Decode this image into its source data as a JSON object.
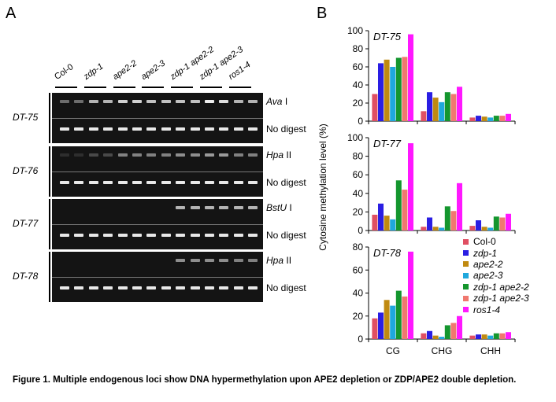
{
  "panel_a": {
    "letter": "A",
    "lanes": [
      "Col-0",
      "zdp-1",
      "ape2-2",
      "ape2-3",
      "zdp-1 ape2-2",
      "zdp-1 ape2-3",
      "ros1-4"
    ],
    "loci": [
      {
        "name": "DT-75",
        "enzyme": "Ava",
        "enzyme_suffix": "I",
        "nodigest": "No digest"
      },
      {
        "name": "DT-76",
        "enzyme": "Hpa",
        "enzyme_suffix": "II",
        "nodigest": "No digest"
      },
      {
        "name": "DT-77",
        "enzyme": "BstU",
        "enzyme_suffix": "I",
        "nodigest": "No digest"
      },
      {
        "name": "DT-78",
        "enzyme": "Hpa",
        "enzyme_suffix": "II",
        "nodigest": "No digest"
      }
    ],
    "band_intensity": [
      [
        0.45,
        0.45,
        0.75,
        0.75,
        0.85,
        0.85,
        0.8,
        0.8,
        0.8,
        0.8,
        0.95,
        0.9,
        0.75,
        0.75
      ],
      [
        0.05,
        0.05,
        0.25,
        0.25,
        0.55,
        0.55,
        0.55,
        0.55,
        0.6,
        0.6,
        0.65,
        0.65,
        0.55,
        0.55
      ],
      [
        0.0,
        0.0,
        0.0,
        0.0,
        0.0,
        0.0,
        0.0,
        0.0,
        0.75,
        0.75,
        0.75,
        0.75,
        0.75,
        0.75
      ],
      [
        0.0,
        0.0,
        0.0,
        0.0,
        0.0,
        0.0,
        0.0,
        0.0,
        0.6,
        0.6,
        0.6,
        0.6,
        0.55,
        0.55
      ]
    ]
  },
  "panel_b": {
    "letter": "B",
    "ylabel": "Cytosine methylation level (%)",
    "legend": [
      "Col-0",
      "zdp-1",
      "ape2-2",
      "ape2-3",
      "zdp-1 ape2-2",
      "zdp-1 ape2-3",
      "ros1-4"
    ],
    "legend_italic": [
      false,
      true,
      true,
      true,
      true,
      true,
      true
    ],
    "colors": [
      "#e04f62",
      "#2a1ee3",
      "#c08a10",
      "#1fa8dd",
      "#14962e",
      "#f0786f",
      "#ff18ff"
    ]
  },
  "chart_data": [
    {
      "type": "bar",
      "title": "DT-75",
      "categories": [
        "CG",
        "CHG",
        "CHH"
      ],
      "ylim": [
        0,
        100
      ],
      "yticks": [
        0,
        20,
        40,
        60,
        80,
        100
      ],
      "series": [
        {
          "name": "Col-0",
          "values": [
            30,
            11,
            4
          ]
        },
        {
          "name": "zdp-1",
          "values": [
            64,
            32,
            6
          ]
        },
        {
          "name": "ape2-2",
          "values": [
            68,
            26,
            5
          ]
        },
        {
          "name": "ape2-3",
          "values": [
            60,
            21,
            4
          ]
        },
        {
          "name": "zdp-1 ape2-2",
          "values": [
            70,
            32,
            6
          ]
        },
        {
          "name": "zdp-1 ape2-3",
          "values": [
            71,
            30,
            6
          ]
        },
        {
          "name": "ros1-4",
          "values": [
            96,
            38,
            8
          ]
        }
      ]
    },
    {
      "type": "bar",
      "title": "DT-77",
      "categories": [
        "CG",
        "CHG",
        "CHH"
      ],
      "ylim": [
        0,
        100
      ],
      "yticks": [
        0,
        20,
        40,
        60,
        80,
        100
      ],
      "series": [
        {
          "name": "Col-0",
          "values": [
            17,
            4,
            5
          ]
        },
        {
          "name": "zdp-1",
          "values": [
            29,
            14,
            11
          ]
        },
        {
          "name": "ape2-2",
          "values": [
            16,
            4,
            4
          ]
        },
        {
          "name": "ape2-3",
          "values": [
            12,
            3,
            3
          ]
        },
        {
          "name": "zdp-1 ape2-2",
          "values": [
            54,
            26,
            15
          ]
        },
        {
          "name": "zdp-1 ape2-3",
          "values": [
            44,
            21,
            14
          ]
        },
        {
          "name": "ros1-4",
          "values": [
            94,
            51,
            18
          ]
        }
      ]
    },
    {
      "type": "bar",
      "title": "DT-78",
      "categories": [
        "CG",
        "CHG",
        "CHH"
      ],
      "ylim": [
        0,
        80
      ],
      "yticks": [
        0,
        20,
        40,
        60,
        80
      ],
      "series": [
        {
          "name": "Col-0",
          "values": [
            18,
            5,
            3
          ]
        },
        {
          "name": "zdp-1",
          "values": [
            23,
            7,
            4
          ]
        },
        {
          "name": "ape2-2",
          "values": [
            34,
            3,
            4
          ]
        },
        {
          "name": "ape2-3",
          "values": [
            29,
            2,
            3
          ]
        },
        {
          "name": "zdp-1 ape2-2",
          "values": [
            42,
            12,
            5
          ]
        },
        {
          "name": "zdp-1 ape2-3",
          "values": [
            37,
            14,
            5
          ]
        },
        {
          "name": "ros1-4",
          "values": [
            76,
            20,
            6
          ]
        }
      ]
    }
  ],
  "caption": "Figure 1. Multiple endogenous loci show DNA hypermethylation upon APE2 depletion or ZDP/APE2 double depletion."
}
